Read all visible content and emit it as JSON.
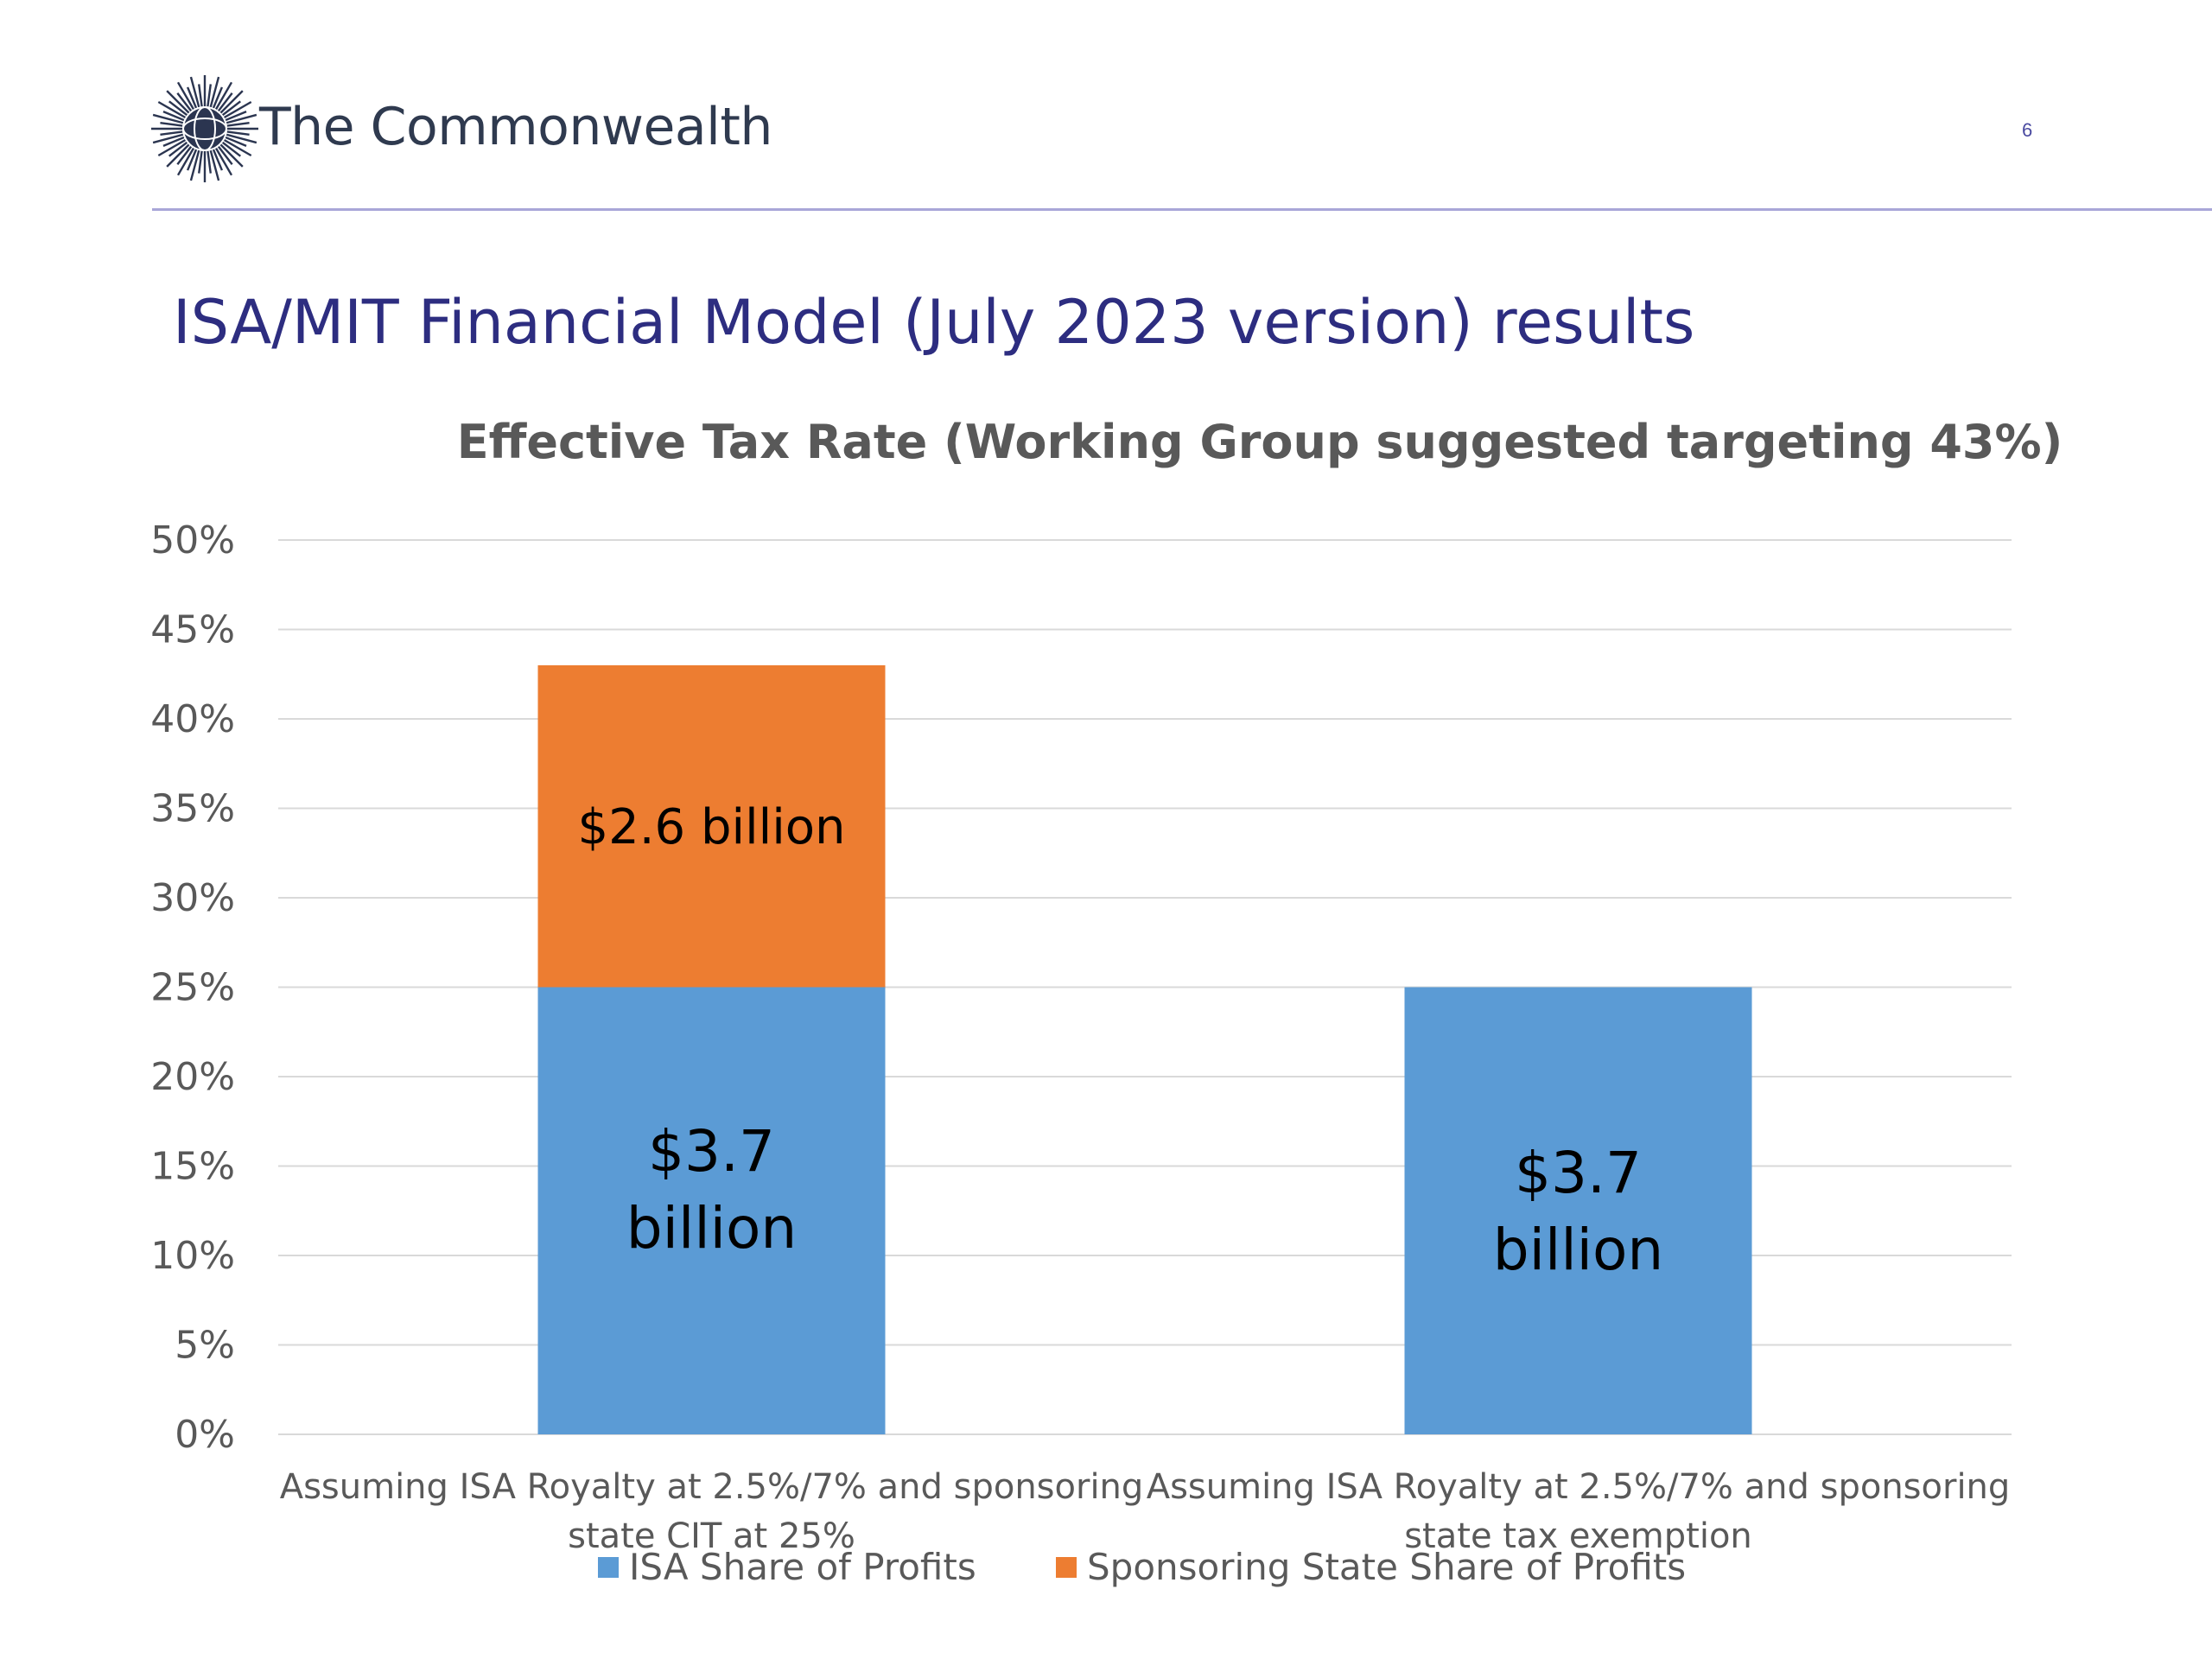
{
  "header": {
    "org_name": "The Commonwealth",
    "page_number": "6",
    "logo_icon": "commonwealth-globe-logo-icon"
  },
  "slide": {
    "title": "ISA/MIT Financial Model (July 2023 version) results"
  },
  "colors": {
    "isa": "#5b9bd5",
    "sponsoring": "#ed7d31",
    "title": "#2d2d80",
    "rule": "#a9a6d8"
  },
  "chart_data": {
    "type": "bar",
    "stacked": true,
    "title": "Effective Tax Rate (Working Group suggested targeting 43%)",
    "ylim": [
      0,
      50
    ],
    "yticks": [
      0,
      5,
      10,
      15,
      20,
      25,
      30,
      35,
      40,
      45,
      50
    ],
    "ytick_labels": [
      "0%",
      "5%",
      "10%",
      "15%",
      "20%",
      "25%",
      "30%",
      "35%",
      "40%",
      "45%",
      "50%"
    ],
    "grid": true,
    "legend_position": "bottom",
    "categories": [
      [
        "Assuming ISA Royalty at 2.5%/7% and sponsoring",
        "state CIT at 25%"
      ],
      [
        "Assuming ISA Royalty at 2.5%/7% and sponsoring",
        "state tax exemption"
      ]
    ],
    "series": [
      {
        "name": "ISA Share of Profits",
        "values": [
          25,
          25
        ],
        "labels": [
          [
            "$3.7",
            "billion"
          ],
          [
            "$3.7",
            "billion"
          ]
        ]
      },
      {
        "name": "Sponsoring State Share of Profits",
        "values": [
          18,
          0
        ],
        "labels": [
          [
            "$2.6 billion"
          ],
          []
        ]
      }
    ]
  }
}
